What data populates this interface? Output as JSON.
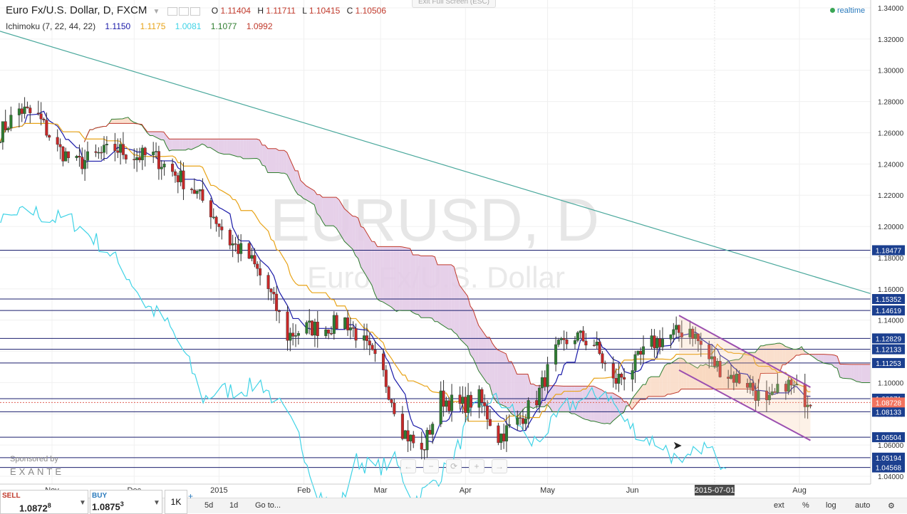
{
  "header": {
    "symbol": "Euro Fx/U.S. Dollar, D, FXCM",
    "ohlc": [
      {
        "label": "O",
        "value": "1.11404"
      },
      {
        "label": "H",
        "value": "1.11711"
      },
      {
        "label": "L",
        "value": "1.10415"
      },
      {
        "label": "C",
        "value": "1.10506"
      }
    ],
    "exit_fullscreen": "Exit Full Screen (ESC)",
    "realtime": "realtime"
  },
  "indicator": {
    "name": "Ichimoku (7, 22, 44, 22)",
    "values": [
      {
        "value": "1.1150",
        "color": "#1a1aa8"
      },
      {
        "value": "1.1175",
        "color": "#e8a317"
      },
      {
        "value": "1.0081",
        "color": "#3fd3e6"
      },
      {
        "value": "1.1077",
        "color": "#2f7d2f"
      },
      {
        "value": "1.0992",
        "color": "#c0392b"
      }
    ]
  },
  "watermark": {
    "main": "EURUSD, D",
    "sub": "Euro Fx/U.S. Dollar"
  },
  "sponsor": {
    "text": "Sponsored by",
    "brand": "EXANTE"
  },
  "trade": {
    "sell_label": "SELL",
    "sell_price_main": "1.0872",
    "sell_price_sup": "8",
    "buy_label": "BUY",
    "buy_price_main": "1.0875",
    "buy_price_sup": "3",
    "qty": "1K"
  },
  "bottom_bar": {
    "items": [
      "5d",
      "1d",
      "Go to..."
    ],
    "right_items": [
      "ext",
      "%",
      "log",
      "auto"
    ]
  },
  "nav_controls": [
    "←",
    "−",
    "⟳",
    "+",
    "→"
  ],
  "chart_data": {
    "type": "candlestick",
    "symbol": "EURUSD",
    "timeframe": "D",
    "ylim": [
      1.035,
      1.345
    ],
    "y_ticks": [
      1.04,
      1.06,
      1.08,
      1.1,
      1.12,
      1.14,
      1.16,
      1.18,
      1.2,
      1.22,
      1.24,
      1.26,
      1.28,
      1.3,
      1.32,
      1.34
    ],
    "y_tick_labels": [
      "1.04000",
      "1.06000",
      "1.08000",
      "1.10000",
      "1.12000",
      "1.14000",
      "1.16000",
      "1.18000",
      "1.20000",
      "1.22000",
      "1.24000",
      "1.26000",
      "1.28000",
      "1.30000",
      "1.32000",
      "1.34000"
    ],
    "x_labels": [
      "Nov",
      "Dec",
      "2015",
      "Feb",
      "Mar",
      "Apr",
      "May",
      "Jun",
      "Aug"
    ],
    "x_label_dates": [
      "2014-11-01",
      "2014-12-01",
      "2015-01-01",
      "2015-02-01",
      "2015-03-01",
      "2015-04-01",
      "2015-05-01",
      "2015-06-01",
      "2015-08-01"
    ],
    "x_range": [
      "2014-10-13",
      "2015-08-27"
    ],
    "crosshair_date": "2015-07-01",
    "current_price": "1.08728",
    "horizontal_levels": [
      "1.18477",
      "1.15352",
      "1.14619",
      "1.12829",
      "1.12133",
      "1.11253",
      "1.08971",
      "1.08133",
      "1.06504",
      "1.05194",
      "1.04568"
    ],
    "trendline": {
      "start_date": "2014-10-13",
      "start_price": 1.325,
      "end_date": "2015-08-27",
      "end_price": 1.157,
      "color": "#4aa89c"
    },
    "channel": {
      "upper": {
        "start_date": "2015-06-18",
        "start_price": 1.143,
        "end_date": "2015-08-05",
        "end_price": 1.097
      },
      "lower": {
        "start_date": "2015-06-18",
        "start_price": 1.108,
        "end_date": "2015-08-05",
        "end_price": 1.063
      },
      "color": "#9b4fb0"
    },
    "anchors": [
      {
        "date": "2014-10-13",
        "price": 1.26
      },
      {
        "date": "2014-10-20",
        "price": 1.275
      },
      {
        "date": "2014-10-27",
        "price": 1.27
      },
      {
        "date": "2014-11-03",
        "price": 1.25
      },
      {
        "date": "2014-11-10",
        "price": 1.24
      },
      {
        "date": "2014-11-17",
        "price": 1.245
      },
      {
        "date": "2014-11-24",
        "price": 1.25
      },
      {
        "date": "2014-12-01",
        "price": 1.245
      },
      {
        "date": "2014-12-08",
        "price": 1.245
      },
      {
        "date": "2014-12-15",
        "price": 1.235
      },
      {
        "date": "2014-12-22",
        "price": 1.225
      },
      {
        "date": "2014-12-29",
        "price": 1.21
      },
      {
        "date": "2015-01-05",
        "price": 1.19
      },
      {
        "date": "2015-01-12",
        "price": 1.18
      },
      {
        "date": "2015-01-19",
        "price": 1.16
      },
      {
        "date": "2015-01-26",
        "price": 1.13
      },
      {
        "date": "2015-02-02",
        "price": 1.135
      },
      {
        "date": "2015-02-09",
        "price": 1.135
      },
      {
        "date": "2015-02-16",
        "price": 1.14
      },
      {
        "date": "2015-02-23",
        "price": 1.125
      },
      {
        "date": "2015-03-02",
        "price": 1.105
      },
      {
        "date": "2015-03-09",
        "price": 1.07
      },
      {
        "date": "2015-03-16",
        "price": 1.055
      },
      {
        "date": "2015-03-23",
        "price": 1.09
      },
      {
        "date": "2015-03-30",
        "price": 1.085
      },
      {
        "date": "2015-04-06",
        "price": 1.09
      },
      {
        "date": "2015-04-13",
        "price": 1.065
      },
      {
        "date": "2015-04-20",
        "price": 1.075
      },
      {
        "date": "2015-04-27",
        "price": 1.09
      },
      {
        "date": "2015-05-04",
        "price": 1.12
      },
      {
        "date": "2015-05-11",
        "price": 1.13
      },
      {
        "date": "2015-05-18",
        "price": 1.125
      },
      {
        "date": "2015-05-25",
        "price": 1.1
      },
      {
        "date": "2015-06-01",
        "price": 1.11
      },
      {
        "date": "2015-06-08",
        "price": 1.125
      },
      {
        "date": "2015-06-15",
        "price": 1.13
      },
      {
        "date": "2015-06-22",
        "price": 1.135
      },
      {
        "date": "2015-06-29",
        "price": 1.115
      },
      {
        "date": "2015-07-06",
        "price": 1.105
      },
      {
        "date": "2015-07-13",
        "price": 1.1
      },
      {
        "date": "2015-07-20",
        "price": 1.085
      },
      {
        "date": "2015-07-27",
        "price": 1.1
      },
      {
        "date": "2015-08-03",
        "price": 1.09
      }
    ]
  }
}
